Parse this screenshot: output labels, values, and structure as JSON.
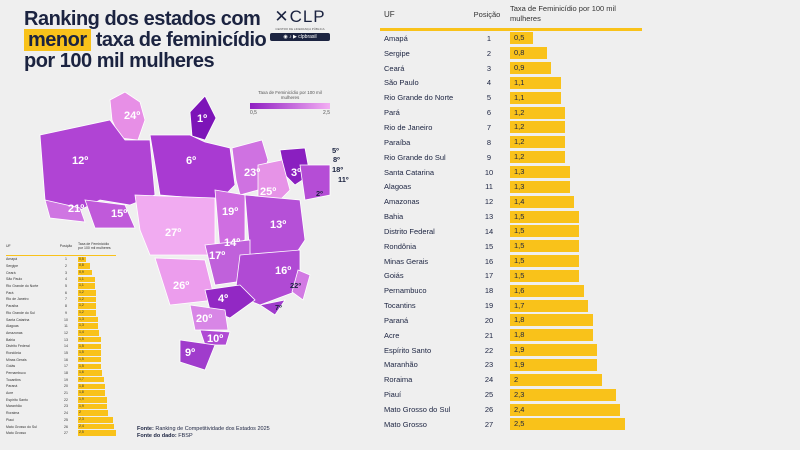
{
  "title": {
    "line1": "Ranking dos estados com",
    "highlight": "menor",
    "line2_rest": "taxa de feminicídio",
    "line3": "por 100 mil mulheres"
  },
  "logo": {
    "mark": "CLP",
    "subtitle": "CENTRO DE LIDERANÇA PÚBLICA",
    "social": "clpbrasil"
  },
  "legend": {
    "title": "Taxa de Feminicídio por 100 mil mulheres",
    "min": "0,5",
    "max": "2,5",
    "colors": [
      "#8f1fc2",
      "#f3aef3"
    ]
  },
  "map_labels": [
    "24º",
    "1º",
    "12º",
    "6º",
    "23º",
    "3º",
    "25º",
    "5º",
    "8º",
    "18º",
    "11º",
    "2º",
    "21º",
    "15º",
    "19º",
    "27º",
    "14º",
    "13º",
    "17º",
    "16º",
    "26º",
    "4º",
    "22º",
    "7º",
    "20º",
    "10º",
    "9º"
  ],
  "source": {
    "label1": "Fonte:",
    "text1": "Ranking de Competitividade dos Estados 2025",
    "label2": "Fonte do dado:",
    "text2": "FBSP"
  },
  "chart_data": {
    "type": "table",
    "title": "Ranking dos estados com menor taxa de feminicídio por 100 mil mulheres",
    "columns": [
      "UF",
      "Posição",
      "Taxa de Feminicídio por 100 mil mulheres"
    ],
    "rows": [
      {
        "uf": "Amapá",
        "pos": "1",
        "val": 0.5,
        "label": "0,5"
      },
      {
        "uf": "Sergipe",
        "pos": "2",
        "val": 0.8,
        "label": "0,8"
      },
      {
        "uf": "Ceará",
        "pos": "3",
        "val": 0.9,
        "label": "0,9"
      },
      {
        "uf": "São Paulo",
        "pos": "4",
        "val": 1.1,
        "label": "1,1"
      },
      {
        "uf": "Rio Grande do Norte",
        "pos": "5",
        "val": 1.1,
        "label": "1,1"
      },
      {
        "uf": "Pará",
        "pos": "6",
        "val": 1.2,
        "label": "1,2"
      },
      {
        "uf": "Rio de Janeiro",
        "pos": "7",
        "val": 1.2,
        "label": "1,2"
      },
      {
        "uf": "Paraíba",
        "pos": "8",
        "val": 1.2,
        "label": "1,2"
      },
      {
        "uf": "Rio Grande do Sul",
        "pos": "9",
        "val": 1.2,
        "label": "1,2"
      },
      {
        "uf": "Santa Catarina",
        "pos": "10",
        "val": 1.3,
        "label": "1,3"
      },
      {
        "uf": "Alagoas",
        "pos": "11",
        "val": 1.3,
        "label": "1,3"
      },
      {
        "uf": "Amazonas",
        "pos": "12",
        "val": 1.4,
        "label": "1,4"
      },
      {
        "uf": "Bahia",
        "pos": "13",
        "val": 1.5,
        "label": "1,5"
      },
      {
        "uf": "Distrito Federal",
        "pos": "14",
        "val": 1.5,
        "label": "1,5"
      },
      {
        "uf": "Rondônia",
        "pos": "15",
        "val": 1.5,
        "label": "1,5"
      },
      {
        "uf": "Minas Gerais",
        "pos": "16",
        "val": 1.5,
        "label": "1,5"
      },
      {
        "uf": "Goiás",
        "pos": "17",
        "val": 1.5,
        "label": "1,5"
      },
      {
        "uf": "Pernambuco",
        "pos": "18",
        "val": 1.6,
        "label": "1,6"
      },
      {
        "uf": "Tocantins",
        "pos": "19",
        "val": 1.7,
        "label": "1,7"
      },
      {
        "uf": "Paraná",
        "pos": "20",
        "val": 1.8,
        "label": "1,8"
      },
      {
        "uf": "Acre",
        "pos": "21",
        "val": 1.8,
        "label": "1,8"
      },
      {
        "uf": "Espírito Santo",
        "pos": "22",
        "val": 1.9,
        "label": "1,9"
      },
      {
        "uf": "Maranhão",
        "pos": "23",
        "val": 1.9,
        "label": "1,9"
      },
      {
        "uf": "Roraima",
        "pos": "24",
        "val": 2.0,
        "label": "2"
      },
      {
        "uf": "Piauí",
        "pos": "25",
        "val": 2.3,
        "label": "2,3"
      },
      {
        "uf": "Mato Grosso do Sul",
        "pos": "26",
        "val": 2.4,
        "label": "2,4"
      },
      {
        "uf": "Mato Grosso",
        "pos": "27",
        "val": 2.5,
        "label": "2,5"
      }
    ],
    "bar_color": "#f9c21a"
  }
}
